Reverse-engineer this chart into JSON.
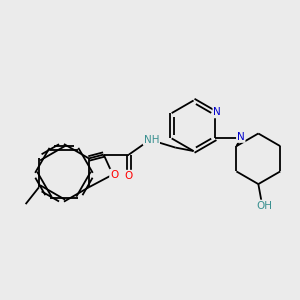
{
  "background_color": "#ebebeb",
  "bond_color": "#000000",
  "atom_colors": {
    "N": "#0000cc",
    "O": "#ff0000",
    "NH": "#3a9090",
    "OH": "#3a9090"
  },
  "figsize": [
    3.0,
    3.0
  ],
  "dpi": 100
}
